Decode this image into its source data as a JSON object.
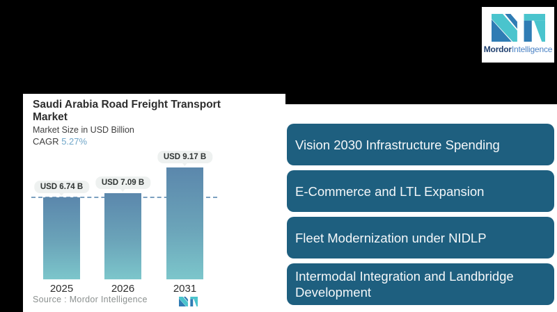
{
  "page": {
    "background": "#000000"
  },
  "logo": {
    "brand_bold": "Mordor",
    "brand_light": "Intelligence",
    "mark_teal": "#4ac4cd",
    "mark_blue": "#2f7cb4",
    "text_navy": "#20406f",
    "text_blue": "#4a82c4"
  },
  "chart_card": {
    "title": "Saudi Arabia Road Freight Transport Market",
    "subtitle": "Market Size in USD Billion",
    "cagr_label": "CAGR",
    "cagr_value": "5.27%",
    "source": "Source :  Mordor Intelligence"
  },
  "chart_data": {
    "type": "bar",
    "title": "Saudi Arabia Road Freight Transport Market",
    "subtitle": "Market Size in USD Billion",
    "cagr": "5.27%",
    "categories": [
      "2025",
      "2026",
      "2031"
    ],
    "values": [
      6.74,
      7.09,
      9.17
    ],
    "value_labels": [
      "USD 6.74 B",
      "USD 7.09 B",
      "USD 9.17 B"
    ],
    "unit": "USD Billion",
    "ylim": [
      0,
      10
    ],
    "grid": false,
    "legend": "none",
    "reference_line": {
      "value": 6.74,
      "style": "dashed",
      "color": "#7ba0c0"
    },
    "bar_gradient_top": "#5b87ac",
    "bar_gradient_bottom": "#7cc6cb",
    "label_pill_bg": "#eef1f0"
  },
  "drivers": [
    "Vision 2030 Infrastructure Spending",
    "E-Commerce and LTL Expansion",
    "Fleet Modernization under NIDLP",
    "Intermodal Integration and Landbridge Development"
  ],
  "colors": {
    "driver_box": "#1e5f7f",
    "driver_text": "#f4f7f9",
    "card_bg": "#ffffff",
    "page_bg": "#000000",
    "cagr_accent": "#6fa6c9"
  }
}
